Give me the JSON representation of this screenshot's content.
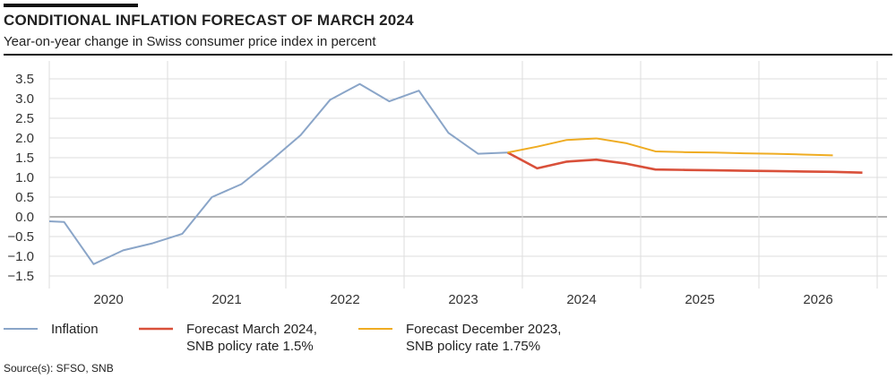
{
  "header": {
    "title": "CONDITIONAL INFLATION FORECAST OF MARCH 2024",
    "subtitle": "Year-on-year change in Swiss consumer price index in percent"
  },
  "footer": {
    "source": "Source(s): SFSO, SNB"
  },
  "chart_data": {
    "type": "line",
    "title": "CONDITIONAL INFLATION FORECAST OF MARCH 2024",
    "subtitle": "Year-on-year change in Swiss consumer price index in percent",
    "xlabel": "",
    "ylabel": "",
    "ylim": [
      -1.5,
      3.5
    ],
    "xlim": [
      "2020 Q1",
      "2026 Q4"
    ],
    "yticks": [
      "3.5",
      "3.0",
      "2.5",
      "2.0",
      "1.5",
      "1.0",
      "0.5",
      "0.0",
      "−0.5",
      "−1.0",
      "−1.5"
    ],
    "ytick_values": [
      3.5,
      3.0,
      2.5,
      2.0,
      1.5,
      1.0,
      0.5,
      0.0,
      -0.5,
      -1.0,
      -1.5
    ],
    "xticks": [
      "2020",
      "2021",
      "2022",
      "2023",
      "2024",
      "2025",
      "2026"
    ],
    "grid": true,
    "legend": "bottom",
    "series": [
      {
        "name": "Inflation",
        "color": "#8aa5c8",
        "x": [
          "2019 Q4",
          "2020 Q1",
          "2020 Q2",
          "2020 Q3",
          "2020 Q4",
          "2021 Q1",
          "2021 Q2",
          "2021 Q3",
          "2021 Q4",
          "2022 Q1",
          "2022 Q2",
          "2022 Q3",
          "2022 Q4",
          "2023 Q1",
          "2023 Q2",
          "2023 Q3",
          "2023 Q4"
        ],
        "values": [
          -0.1,
          -0.13,
          -1.2,
          -0.85,
          -0.67,
          -0.43,
          0.5,
          0.83,
          1.43,
          2.07,
          2.97,
          3.37,
          2.93,
          3.2,
          2.13,
          1.6,
          1.63
        ]
      },
      {
        "name": "Forecast March 2024,",
        "name2": "SNB policy rate 1.5%",
        "color": "#d9503a",
        "x": [
          "2023 Q4",
          "2024 Q1",
          "2024 Q2",
          "2024 Q3",
          "2024 Q4",
          "2025 Q1",
          "2025 Q2",
          "2025 Q3",
          "2025 Q4",
          "2026 Q1",
          "2026 Q2",
          "2026 Q3",
          "2026 Q4"
        ],
        "values": [
          1.63,
          1.23,
          1.4,
          1.45,
          1.35,
          1.2,
          1.19,
          1.18,
          1.17,
          1.16,
          1.15,
          1.14,
          1.12
        ]
      },
      {
        "name": "Forecast December 2023,",
        "name2": "SNB policy rate 1.75%",
        "color": "#efac22",
        "x": [
          "2023 Q4",
          "2024 Q1",
          "2024 Q2",
          "2024 Q3",
          "2024 Q4",
          "2025 Q1",
          "2025 Q2",
          "2025 Q3",
          "2025 Q4",
          "2026 Q1",
          "2026 Q2",
          "2026 Q3"
        ],
        "values": [
          1.63,
          1.78,
          1.95,
          1.99,
          1.87,
          1.66,
          1.64,
          1.63,
          1.61,
          1.6,
          1.58,
          1.56
        ]
      }
    ]
  }
}
